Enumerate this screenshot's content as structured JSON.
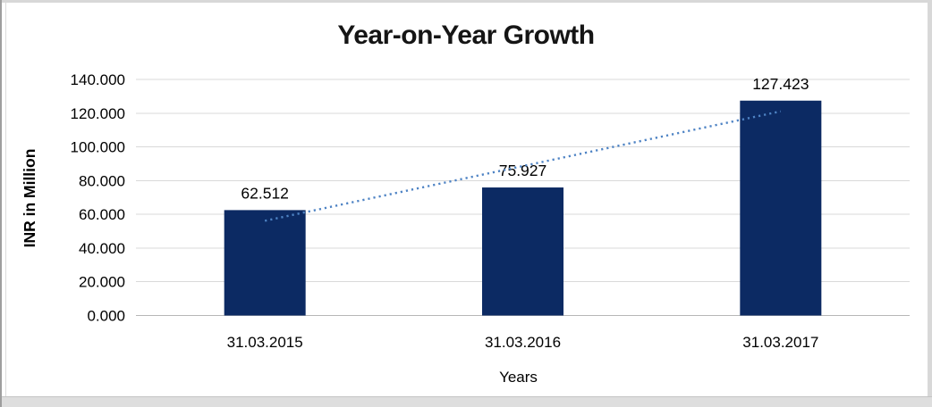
{
  "chart_data": {
    "type": "bar",
    "title": "Year-on-Year Growth",
    "categories": [
      "31.03.2015",
      "31.03.2016",
      "31.03.2017"
    ],
    "values": [
      62.512,
      75.927,
      127.423
    ],
    "data_labels": [
      "62.512",
      "75.927",
      "127.423"
    ],
    "xlabel": "Years",
    "ylabel": "INR in Million",
    "ylim": [
      0,
      140
    ],
    "ytick_step": 20,
    "ytick_labels": [
      "0.000",
      "20.000",
      "40.000",
      "60.000",
      "80.000",
      "100.000",
      "120.000",
      "140.000"
    ],
    "grid": true,
    "legend": "none",
    "bar_color": "#0c2a63",
    "trendline": {
      "type": "linear",
      "style": "dotted",
      "color": "#4e83c4"
    }
  },
  "frame": {
    "background": "#ffffff",
    "border_color": "#d8d8d8",
    "left_edge_color": "#9e9e9e",
    "gridline_color": "#d9d9d9",
    "axis_line_color": "#b7b7b7",
    "text_color": "#000000",
    "title_color": "#151515"
  }
}
